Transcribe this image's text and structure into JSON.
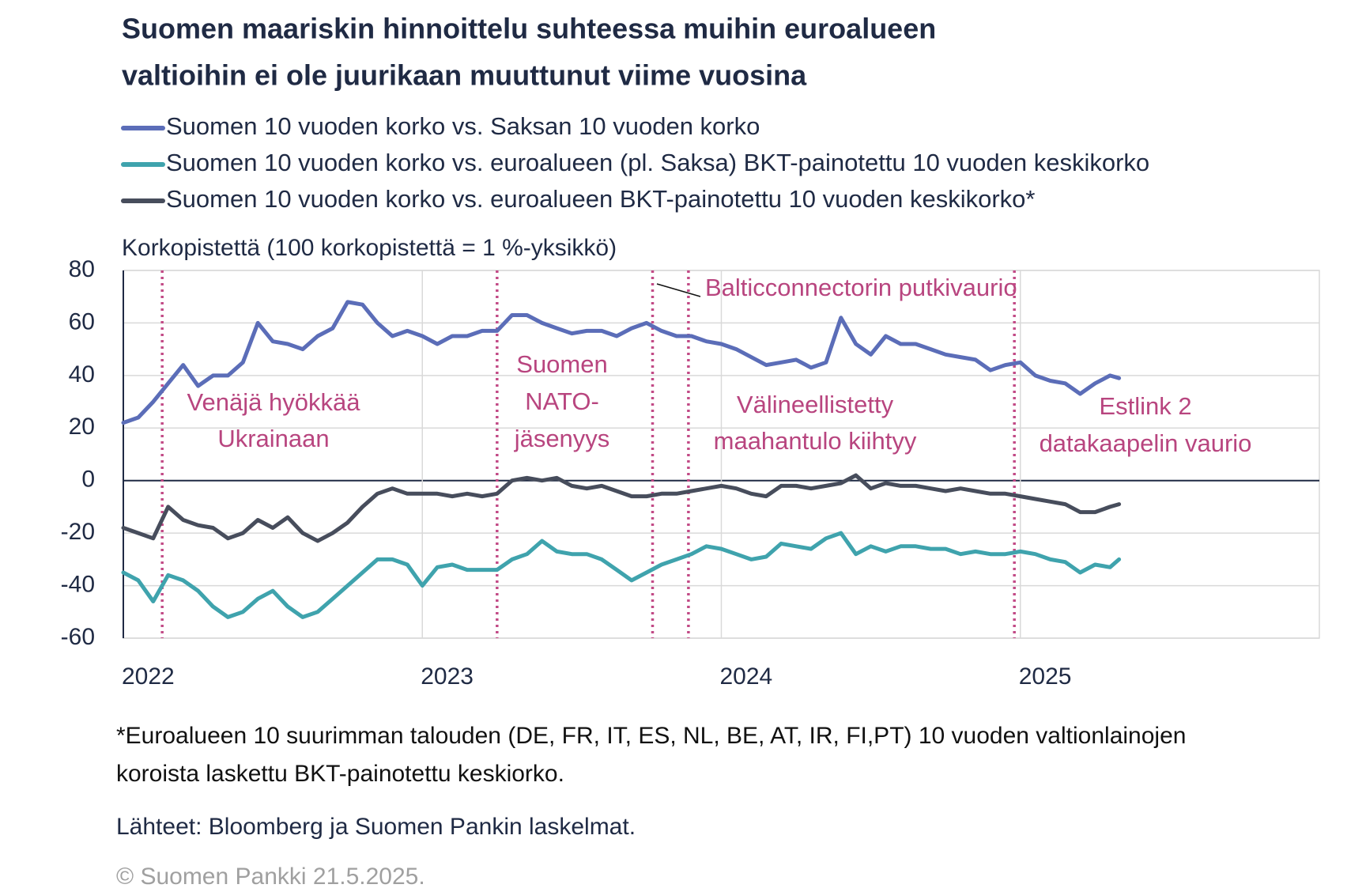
{
  "chart_data": {
    "type": "line",
    "title": [
      "Suomen maariskin hinnoittelu suhteessa muihin euroalueen",
      "valtioihin ei ole juurikaan muuttunut viime vuosina"
    ],
    "ylabel": "Korkopistettä (100 korkopistettä = 1 %-yksikkö)",
    "x": [
      2022.0,
      2022.05,
      2022.1,
      2022.15,
      2022.2,
      2022.25,
      2022.3,
      2022.35,
      2022.4,
      2022.45,
      2022.5,
      2022.55,
      2022.6,
      2022.65,
      2022.7,
      2022.75,
      2022.8,
      2022.85,
      2022.9,
      2022.95,
      2023.0,
      2023.05,
      2023.1,
      2023.15,
      2023.2,
      2023.25,
      2023.3,
      2023.35,
      2023.4,
      2023.45,
      2023.5,
      2023.55,
      2023.6,
      2023.65,
      2023.7,
      2023.75,
      2023.8,
      2023.85,
      2023.9,
      2023.95,
      2024.0,
      2024.05,
      2024.1,
      2024.15,
      2024.2,
      2024.25,
      2024.3,
      2024.35,
      2024.4,
      2024.45,
      2024.5,
      2024.55,
      2024.6,
      2024.65,
      2024.7,
      2024.75,
      2024.8,
      2024.85,
      2024.9,
      2024.95,
      2025.0,
      2025.05,
      2025.1,
      2025.15,
      2025.2,
      2025.25,
      2025.3,
      2025.33
    ],
    "series": [
      {
        "name": "Suomen 10 vuoden korko vs. Saksan 10 vuoden korko",
        "color": "#5b6db8",
        "values": [
          22,
          24,
          30,
          37,
          44,
          36,
          40,
          40,
          45,
          60,
          53,
          52,
          50,
          55,
          58,
          68,
          67,
          60,
          55,
          57,
          55,
          52,
          55,
          55,
          57,
          57,
          63,
          63,
          60,
          58,
          56,
          57,
          57,
          55,
          58,
          60,
          57,
          55,
          55,
          53,
          52,
          50,
          47,
          44,
          45,
          46,
          43,
          45,
          62,
          52,
          48,
          55,
          52,
          52,
          50,
          48,
          47,
          46,
          42,
          44,
          45,
          40,
          38,
          37,
          33,
          37,
          40,
          39
        ]
      },
      {
        "name": "Suomen 10 vuoden korko vs. euroalueen (pl. Saksa) BKT-painotettu 10 vuoden keskikorko",
        "color": "#3fa3ad",
        "values": [
          -35,
          -38,
          -46,
          -36,
          -38,
          -42,
          -48,
          -52,
          -50,
          -45,
          -42,
          -48,
          -52,
          -50,
          -45,
          -40,
          -35,
          -30,
          -30,
          -32,
          -40,
          -33,
          -32,
          -34,
          -34,
          -34,
          -30,
          -28,
          -23,
          -27,
          -28,
          -28,
          -30,
          -34,
          -38,
          -35,
          -32,
          -30,
          -28,
          -25,
          -26,
          -28,
          -30,
          -29,
          -24,
          -25,
          -26,
          -22,
          -20,
          -28,
          -25,
          -27,
          -25,
          -25,
          -26,
          -26,
          -28,
          -27,
          -28,
          -28,
          -27,
          -28,
          -30,
          -31,
          -35,
          -32,
          -33,
          -30
        ]
      },
      {
        "name": "Suomen 10 vuoden korko vs. euroalueen BKT-painotettu 10 vuoden keskikorko*",
        "color": "#474d5c",
        "values": [
          -18,
          -20,
          -22,
          -10,
          -15,
          -17,
          -18,
          -22,
          -20,
          -15,
          -18,
          -14,
          -20,
          -23,
          -20,
          -16,
          -10,
          -5,
          -3,
          -5,
          -5,
          -5,
          -6,
          -5,
          -6,
          -5,
          0,
          1,
          0,
          1,
          -2,
          -3,
          -2,
          -4,
          -6,
          -6,
          -5,
          -5,
          -4,
          -3,
          -2,
          -3,
          -5,
          -6,
          -2,
          -2,
          -3,
          -2,
          -1,
          2,
          -3,
          -1,
          -2,
          -2,
          -3,
          -4,
          -3,
          -4,
          -5,
          -5,
          -6,
          -7,
          -8,
          -9,
          -12,
          -12,
          -10,
          -9
        ]
      }
    ],
    "xlim": [
      2022,
      2026
    ],
    "xticks": [
      2022,
      2023,
      2024,
      2025
    ],
    "ylim": [
      -60,
      80
    ],
    "yticks": [
      -60,
      -40,
      -20,
      0,
      20,
      40,
      60,
      80
    ],
    "grid": true,
    "events": [
      {
        "x": 2022.13,
        "label": [
          "Venäjä hyökkää",
          "Ukrainaan"
        ]
      },
      {
        "x": 2023.25,
        "label": [
          "Suomen",
          "NATO-",
          "jäsenyys"
        ]
      },
      {
        "x": 2023.77,
        "label": [
          "Balticconnectorin putkivaurio"
        ]
      },
      {
        "x": 2023.89,
        "label": [
          "Välineellistetty",
          "maahantulo kiihtyy"
        ]
      },
      {
        "x": 2024.98,
        "label": [
          "Estlink 2",
          "datakaapelin vaurio"
        ]
      }
    ],
    "notes": [
      "*Euroalueen 10 suurimman talouden (DE, FR, IT, ES, NL, BE, AT, IR, FI,PT) 10 vuoden valtionlainojen",
      "koroista laskettu BKT-painotettu keskiorko."
    ],
    "source": "Lähteet: Bloomberg ja Suomen Pankin laskelmat.",
    "copyright": "© Suomen Pankki 21.5.2025."
  }
}
